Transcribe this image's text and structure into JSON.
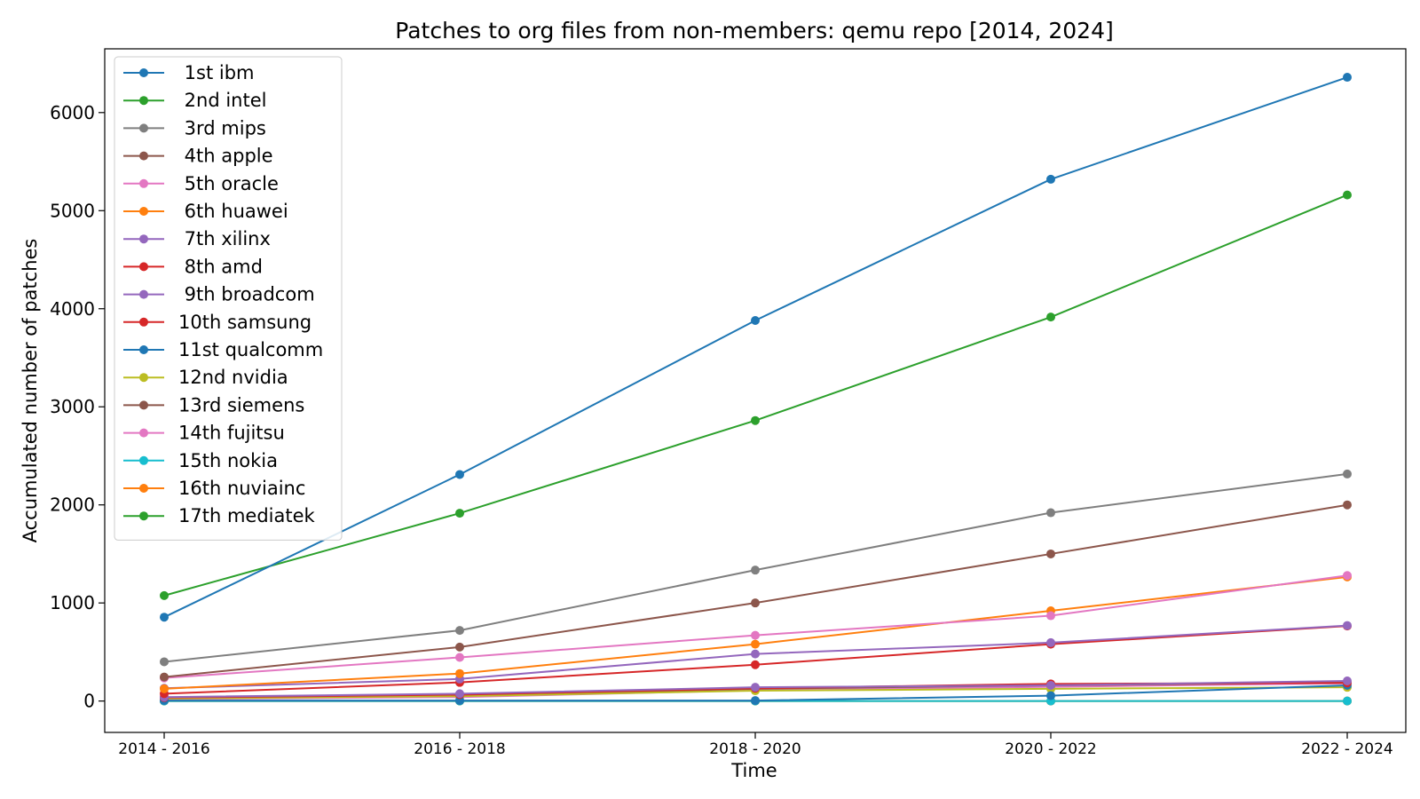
{
  "chart_data": {
    "type": "line",
    "title": "Patches to org files from non-members: qemu repo [2014, 2024]",
    "xlabel": "Time",
    "ylabel": "Accumulated number of patches",
    "categories": [
      "2014 - 2016",
      "2016 - 2018",
      "2018 - 2020",
      "2020 - 2022",
      "2022 - 2024"
    ],
    "ylim": [
      -320,
      6650
    ],
    "yticks": [
      0,
      1000,
      2000,
      3000,
      4000,
      5000,
      6000
    ],
    "grid": false,
    "legend_position": "upper-left",
    "series": [
      {
        "name": " 1st ibm",
        "color": "#1f77b4",
        "values": [
          855,
          2310,
          3880,
          5320,
          6360
        ]
      },
      {
        "name": " 2nd intel",
        "color": "#2ca02c",
        "values": [
          1075,
          1915,
          2860,
          3915,
          5160
        ]
      },
      {
        "name": " 3rd mips",
        "color": "#7f7f7f",
        "values": [
          400,
          720,
          1335,
          1920,
          2315
        ]
      },
      {
        "name": " 4th apple",
        "color": "#8c564b",
        "values": [
          245,
          550,
          1000,
          1500,
          2000
        ]
      },
      {
        "name": " 5th oracle",
        "color": "#e377c2",
        "values": [
          235,
          445,
          670,
          870,
          1280
        ]
      },
      {
        "name": " 6th huawei",
        "color": "#ff7f0e",
        "values": [
          125,
          280,
          580,
          920,
          1265
        ]
      },
      {
        "name": " 7th xilinx",
        "color": "#9467bd",
        "values": [
          130,
          225,
          480,
          595,
          770
        ]
      },
      {
        "name": " 8th amd",
        "color": "#d62728",
        "values": [
          75,
          190,
          370,
          580,
          765
        ]
      },
      {
        "name": " 9th broadcom",
        "color": "#9467bd",
        "values": [
          40,
          75,
          140,
          160,
          205
        ]
      },
      {
        "name": "10th samsung",
        "color": "#d62728",
        "values": [
          35,
          65,
          130,
          175,
          185
        ]
      },
      {
        "name": "11st qualcomm",
        "color": "#1f77b4",
        "values": [
          5,
          5,
          5,
          55,
          160
        ]
      },
      {
        "name": "12nd nvidia",
        "color": "#bcbd22",
        "values": [
          25,
          50,
          105,
          125,
          140
        ]
      },
      {
        "name": "13rd siemens",
        "color": "#8c564b",
        "values": [
          30,
          55,
          125,
          160,
          190
        ]
      },
      {
        "name": "14th fujitsu",
        "color": "#e377c2",
        "values": [
          20,
          40,
          110,
          145,
          180
        ]
      },
      {
        "name": "15th nokia",
        "color": "#17becf",
        "values": [
          0,
          0,
          0,
          0,
          0
        ]
      },
      {
        "name": "16th nuviainc",
        "color": "#ff7f0e",
        "values": [
          0,
          0,
          0,
          0,
          0
        ]
      },
      {
        "name": "17th mediatek",
        "color": "#2ca02c",
        "values": [
          0,
          0,
          0,
          0,
          0
        ]
      }
    ]
  }
}
